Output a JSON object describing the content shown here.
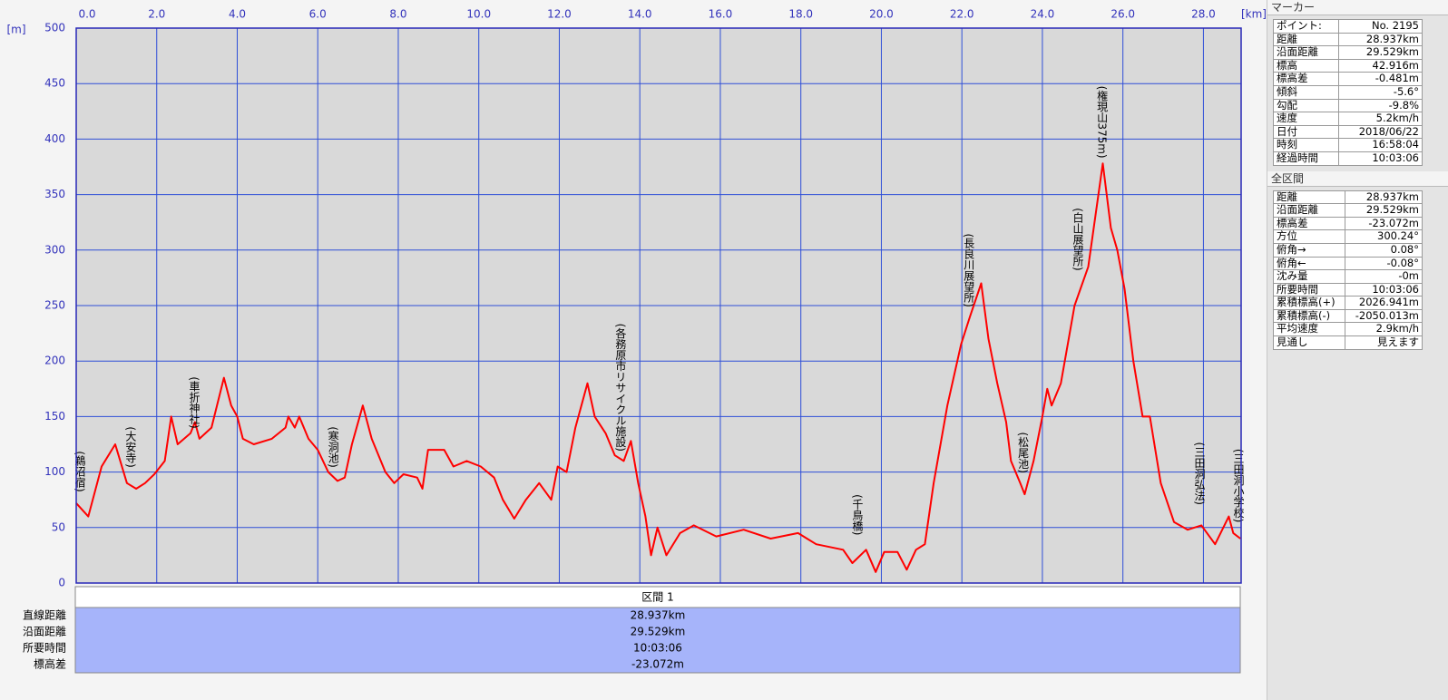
{
  "chart_data": {
    "type": "line",
    "y_unit": "[m]",
    "x_unit": "[km]",
    "x": [
      0,
      0.3,
      0.63,
      0.97,
      1.26,
      1.49,
      1.71,
      1.94,
      2.2,
      2.36,
      2.52,
      2.84,
      2.95,
      3.06,
      3.36,
      3.67,
      3.85,
      4.0,
      4.14,
      4.41,
      4.86,
      5.2,
      5.27,
      5.43,
      5.54,
      5.77,
      6.0,
      6.26,
      6.49,
      6.67,
      6.85,
      7.12,
      7.34,
      7.68,
      7.9,
      8.13,
      8.47,
      8.6,
      8.74,
      9.14,
      9.37,
      9.7,
      10.05,
      10.38,
      10.6,
      10.88,
      11.17,
      11.5,
      11.8,
      11.96,
      12.18,
      12.4,
      12.7,
      12.88,
      13.15,
      13.38,
      13.6,
      13.78,
      13.96,
      14.14,
      14.28,
      14.44,
      14.66,
      15.0,
      15.34,
      15.9,
      16.58,
      17.25,
      17.93,
      18.38,
      19.05,
      19.28,
      19.62,
      19.86,
      20.07,
      20.4,
      20.63,
      20.86,
      21.08,
      21.3,
      21.64,
      21.98,
      22.2,
      22.48,
      22.66,
      22.88,
      23.1,
      23.22,
      23.45,
      23.56,
      23.78,
      24.0,
      24.12,
      24.23,
      24.46,
      24.8,
      25.14,
      25.5,
      25.7,
      25.86,
      26.04,
      26.26,
      26.49,
      26.67,
      26.94,
      27.27,
      27.61,
      27.95,
      28.29,
      28.63,
      28.74,
      28.92
    ],
    "series": [
      {
        "color": "#ff0000",
        "values": [
          72,
          60,
          105,
          125,
          90,
          85,
          90,
          98,
          110,
          150,
          125,
          135,
          145,
          130,
          140,
          185,
          160,
          150,
          130,
          125,
          130,
          140,
          150,
          140,
          150,
          130,
          120,
          100,
          92,
          95,
          125,
          160,
          130,
          100,
          90,
          98,
          95,
          85,
          120,
          120,
          105,
          110,
          105,
          95,
          75,
          58,
          75,
          90,
          75,
          105,
          100,
          140,
          180,
          150,
          135,
          115,
          110,
          128,
          90,
          60,
          25,
          50,
          25,
          45,
          52,
          42,
          48,
          40,
          45,
          35,
          30,
          18,
          30,
          10,
          28,
          28,
          12,
          30,
          35,
          90,
          160,
          215,
          240,
          270,
          220,
          180,
          145,
          110,
          90,
          80,
          110,
          150,
          175,
          160,
          180,
          250,
          285,
          378,
          320,
          300,
          265,
          200,
          150,
          150,
          90,
          55,
          48,
          52,
          35,
          60,
          45,
          40
        ]
      }
    ],
    "xlim": [
      0,
      28.937
    ],
    "ylim": [
      0,
      500
    ],
    "xticks": [
      {
        "value": 0,
        "label": "0.0"
      },
      {
        "value": 2,
        "label": "2.0"
      },
      {
        "value": 4,
        "label": "4.0"
      },
      {
        "value": 6,
        "label": "6.0"
      },
      {
        "value": 8,
        "label": "8.0"
      },
      {
        "value": 10,
        "label": "10.0"
      },
      {
        "value": 12,
        "label": "12.0"
      },
      {
        "value": 14,
        "label": "14.0"
      },
      {
        "value": 16,
        "label": "16.0"
      },
      {
        "value": 18,
        "label": "18.0"
      },
      {
        "value": 20,
        "label": "20.0"
      },
      {
        "value": 22,
        "label": "22.0"
      },
      {
        "value": 24,
        "label": "24.0"
      },
      {
        "value": 26,
        "label": "26.0"
      },
      {
        "value": 28,
        "label": "28.0"
      }
    ],
    "yticks": [
      0,
      50,
      100,
      150,
      200,
      250,
      300,
      350,
      400,
      450,
      500
    ],
    "grid": true,
    "annotations": [
      {
        "text": "(鵜沼宿)",
        "x": 0.09,
        "y": 119
      },
      {
        "text": "(大安寺)",
        "x": 1.35,
        "y": 141
      },
      {
        "text": "(車折神社)",
        "x": 2.93,
        "y": 186
      },
      {
        "text": "(寒洞池)",
        "x": 6.38,
        "y": 141
      },
      {
        "text": "(各務原市リサイクル施設)",
        "x": 13.52,
        "y": 234
      },
      {
        "text": "(千鳥橋)",
        "x": 19.4,
        "y": 80
      },
      {
        "text": "(長良川展望所)",
        "x": 22.17,
        "y": 315
      },
      {
        "text": "(松尾池)",
        "x": 23.52,
        "y": 136
      },
      {
        "text": "(白山展望所)",
        "x": 24.88,
        "y": 338
      },
      {
        "text": "(権現山375m)",
        "x": 25.48,
        "y": 448
      },
      {
        "text": "(三田洞弘法)",
        "x": 27.9,
        "y": 127
      },
      {
        "text": "(三田洞小学校)",
        "x": 28.87,
        "y": 121
      }
    ]
  },
  "segment_table": {
    "header": "区間 1",
    "rows": [
      [
        "直線距離",
        "28.937km"
      ],
      [
        "沿面距離",
        "29.529km"
      ],
      [
        "所要時間",
        "10:03:06"
      ],
      [
        "標高差",
        "-23.072m"
      ]
    ]
  },
  "marker_panel": {
    "title": "マーカー",
    "rows": [
      [
        "ポイント:",
        "No. 2195"
      ],
      [
        "距離",
        "28.937km"
      ],
      [
        "沿面距離",
        "29.529km"
      ],
      [
        "標高",
        "42.916m"
      ],
      [
        "標高差",
        "-0.481m"
      ],
      [
        "傾斜",
        "-5.6°"
      ],
      [
        "勾配",
        "-9.8%"
      ],
      [
        "速度",
        "5.2km/h"
      ],
      [
        "日付",
        "2018/06/22"
      ],
      [
        "時刻",
        "16:58:04"
      ],
      [
        "経過時間",
        "10:03:06"
      ]
    ]
  },
  "total_panel": {
    "title": "全区間",
    "rows": [
      [
        "距離",
        "28.937km"
      ],
      [
        "沿面距離",
        "29.529km"
      ],
      [
        "標高差",
        "-23.072m"
      ],
      [
        "方位",
        "300.24°"
      ],
      [
        "俯角→",
        "0.08°"
      ],
      [
        "俯角←",
        "-0.08°"
      ],
      [
        "沈み量",
        "-0m"
      ],
      [
        "所要時間",
        "10:03:06"
      ],
      [
        "累積標高(+)",
        "2026.941m"
      ],
      [
        "累積標高(-)",
        "-2050.013m"
      ],
      [
        "平均速度",
        "2.9km/h"
      ],
      [
        "見通し",
        "見えます"
      ]
    ]
  }
}
